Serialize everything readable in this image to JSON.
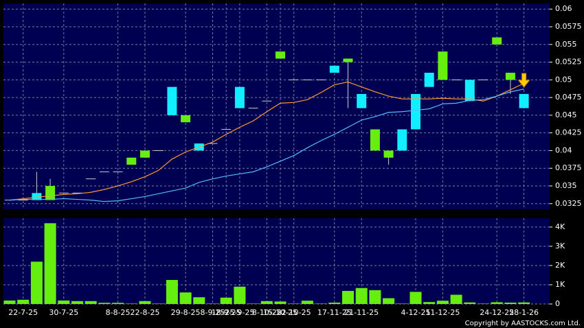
{
  "chart_data": [
    {
      "type": "candlestick",
      "up_color": "#66ee11",
      "down_color": "#11eeff",
      "open": [
        0.033,
        0.033,
        0.034,
        0.033,
        0.034,
        0.034,
        0.036,
        0.037,
        0.037,
        0.038,
        0.039,
        0.04,
        0.049,
        0.044,
        0.041,
        0.041,
        0.043,
        0.049,
        0.046,
        0.047,
        0.053,
        0.05,
        0.05,
        0.05,
        0.052,
        0.0525,
        0.048,
        0.04,
        0.039,
        0.043,
        0.048,
        0.051,
        0.05,
        0.05,
        0.05,
        0.05,
        0.055,
        0.05,
        0.048
      ],
      "high": [
        0.033,
        0.033,
        0.037,
        0.036,
        0.034,
        0.034,
        0.036,
        0.037,
        0.037,
        0.039,
        0.04,
        0.04,
        0.049,
        0.045,
        0.041,
        0.041,
        0.043,
        0.049,
        0.046,
        0.047,
        0.054,
        0.05,
        0.05,
        0.05,
        0.052,
        0.053,
        0.048,
        0.043,
        0.04,
        0.043,
        0.048,
        0.051,
        0.054,
        0.05,
        0.05,
        0.05,
        0.056,
        0.051,
        0.048
      ],
      "low": [
        0.033,
        0.033,
        0.033,
        0.033,
        0.034,
        0.034,
        0.036,
        0.037,
        0.037,
        0.038,
        0.039,
        0.04,
        0.045,
        0.044,
        0.04,
        0.041,
        0.043,
        0.046,
        0.046,
        0.047,
        0.053,
        0.05,
        0.05,
        0.05,
        0.051,
        0.046,
        0.046,
        0.04,
        0.038,
        0.04,
        0.043,
        0.049,
        0.05,
        0.05,
        0.047,
        0.05,
        0.055,
        0.048,
        0.046
      ],
      "close": [
        0.033,
        0.033,
        0.033,
        0.035,
        0.034,
        0.034,
        0.036,
        0.037,
        0.037,
        0.039,
        0.04,
        0.04,
        0.045,
        0.045,
        0.04,
        0.041,
        0.043,
        0.046,
        0.046,
        0.047,
        0.054,
        0.05,
        0.05,
        0.05,
        0.051,
        0.053,
        0.046,
        0.043,
        0.04,
        0.04,
        0.043,
        0.049,
        0.054,
        0.05,
        0.047,
        0.05,
        0.056,
        0.051,
        0.046
      ],
      "series": [
        {
          "color": "#ff9933",
          "values": [
            0.033,
            0.0332,
            0.0334,
            0.0336,
            0.0338,
            0.0339,
            0.0341,
            0.0345,
            0.035,
            0.0356,
            0.0363,
            0.0372,
            0.0388,
            0.0398,
            0.0405,
            0.0412,
            0.0423,
            0.0433,
            0.0442,
            0.0455,
            0.0467,
            0.0468,
            0.0472,
            0.0482,
            0.0493,
            0.0497,
            0.049,
            0.0483,
            0.0477,
            0.0473,
            0.0473,
            0.0473,
            0.0474,
            0.0473,
            0.0473,
            0.047,
            0.0477,
            0.0486,
            0.0495
          ]
        },
        {
          "color": "#55bbff",
          "values": [
            0.033,
            0.0331,
            0.0331,
            0.0331,
            0.0332,
            0.0331,
            0.033,
            0.0328,
            0.0329,
            0.0332,
            0.0335,
            0.0339,
            0.0343,
            0.0347,
            0.0355,
            0.036,
            0.0364,
            0.0367,
            0.037,
            0.0377,
            0.0385,
            0.0393,
            0.0404,
            0.0414,
            0.0423,
            0.0433,
            0.0443,
            0.0448,
            0.0454,
            0.0455,
            0.0457,
            0.0459,
            0.0466,
            0.0467,
            0.0471,
            0.0472,
            0.0477,
            0.0483,
            0.0487
          ]
        }
      ],
      "ylim": [
        0.0317,
        0.0608
      ],
      "yticks": [
        0.0325,
        0.035,
        0.0375,
        0.04,
        0.0425,
        0.045,
        0.0475,
        0.05,
        0.0525,
        0.055,
        0.0575,
        0.06
      ],
      "grid": true
    },
    {
      "type": "bar",
      "color": "#66ee11",
      "categories": [
        null,
        "22-7-25",
        null,
        null,
        "30-7-25",
        null,
        null,
        null,
        "8-8-25",
        null,
        "22-8-25",
        null,
        null,
        "29-8-25",
        null,
        "8-9-25",
        "18-9-25",
        "25-9-25",
        null,
        "8-10-25",
        "15-10-25",
        "22-10-25",
        null,
        null,
        "17-11-25",
        null,
        "21-11-25",
        null,
        null,
        null,
        "4-12-25",
        null,
        "11-12-25",
        null,
        null,
        null,
        "24-12-25",
        null,
        "28-1-26"
      ],
      "values": [
        180,
        220,
        2200,
        4200,
        180,
        150,
        150,
        60,
        60,
        20,
        150,
        20,
        1250,
        600,
        350,
        20,
        330,
        900,
        20,
        150,
        130,
        20,
        170,
        20,
        70,
        680,
        830,
        720,
        300,
        20,
        630,
        100,
        170,
        480,
        80,
        20,
        90,
        70,
        80
      ],
      "ylim": [
        0,
        4460
      ],
      "yticks": [
        0,
        {
          "value": 1000,
          "label": "1K"
        },
        {
          "value": 2000,
          "label": "2K"
        },
        {
          "value": 3000,
          "label": "3K"
        },
        {
          "value": 4000,
          "label": "4K"
        }
      ],
      "grid": true
    }
  ],
  "copyright": "Copyright by AASTOCKS.com Ltd."
}
